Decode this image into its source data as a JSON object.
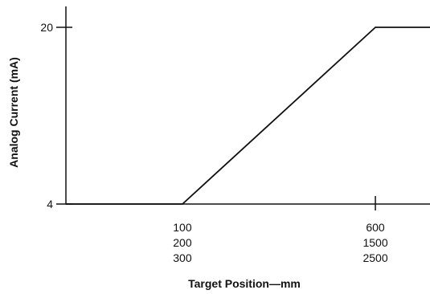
{
  "chart_data": {
    "type": "line",
    "title": "",
    "xlabel": "Target Position—mm",
    "ylabel": "Analog Current (mA)",
    "xlim": [
      0,
      1
    ],
    "ylim": [
      4,
      20
    ],
    "grid": false,
    "x_tick_rows": [
      [
        "100",
        "600"
      ],
      [
        "200",
        "1500"
      ],
      [
        "300",
        "2500"
      ]
    ],
    "x_tick_values": [
      0.32,
      0.85
    ],
    "y_ticks": [
      {
        "label": "4",
        "value": 4
      },
      {
        "label": "20",
        "value": 20
      }
    ],
    "series": [
      {
        "x": [
          0,
          0.32,
          0.85,
          1.0
        ],
        "y": [
          4,
          4,
          20,
          20
        ],
        "color": "#111111"
      }
    ]
  }
}
